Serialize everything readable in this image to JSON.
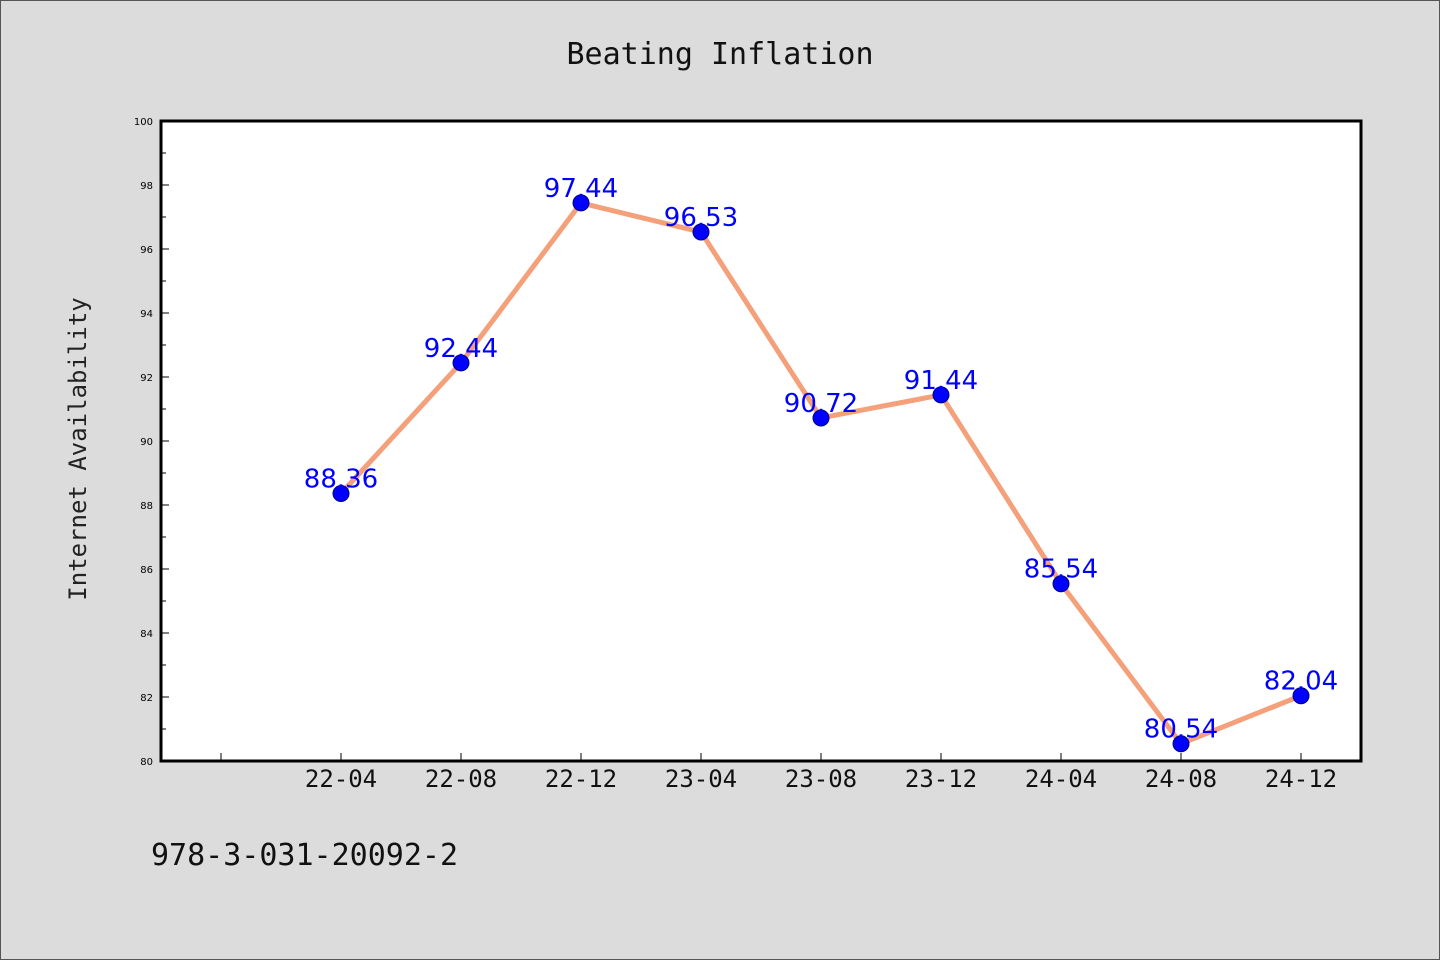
{
  "chart_data": {
    "type": "line",
    "title": "Beating Inflation",
    "xlabel": "",
    "ylabel": "Internet Availability",
    "categories": [
      "22-04",
      "22-08",
      "22-12",
      "23-04",
      "23-08",
      "23-12",
      "24-04",
      "24-08",
      "24-12"
    ],
    "series": [
      {
        "values": [
          88.36,
          92.44,
          97.44,
          96.53,
          90.72,
          91.44,
          85.54,
          80.54,
          82.04
        ]
      }
    ],
    "data_labels": [
      "88.36",
      "92.44",
      "97.44",
      "96.53",
      "90.72",
      "91.44",
      "85.54",
      "80.54",
      "82.04"
    ],
    "ylim": [
      80,
      100
    ],
    "yticks": [
      "80",
      "82",
      "84",
      "86",
      "88",
      "90",
      "92",
      "94",
      "96",
      "98",
      "100"
    ],
    "grid": false,
    "legend": "none",
    "colors": {
      "line": "#f4a07a",
      "marker": "#0000ff",
      "marker_edge": "#000080",
      "data_label": "#0000ff",
      "plot_background": "#ffffff",
      "figure_background": "#dcdcdc"
    }
  },
  "footer_text": "978-3-031-20092-2"
}
